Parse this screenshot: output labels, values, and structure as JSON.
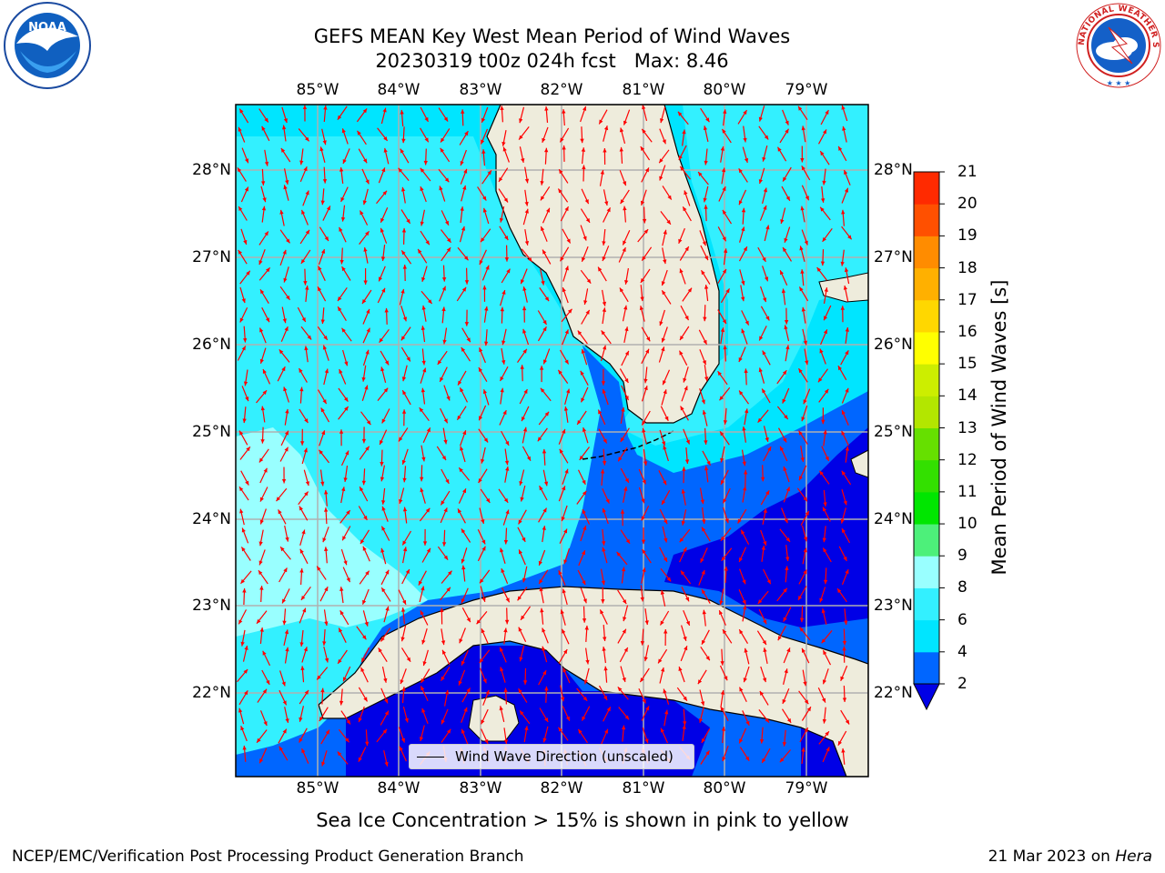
{
  "title": {
    "line1": "GEFS MEAN Key West Mean Period of Wind Waves",
    "line2": "20230319 t00z 024h fcst   Max: 8.46"
  },
  "map": {
    "lon_labels": [
      "85°W",
      "84°W",
      "83°W",
      "82°W",
      "81°W",
      "80°W",
      "79°W"
    ],
    "lat_labels": [
      "28°N",
      "27°N",
      "26°N",
      "25°N",
      "24°N",
      "23°N",
      "22°N"
    ],
    "lon_range": [
      -86.0,
      -78.3
    ],
    "lat_range": [
      21.05,
      28.75
    ],
    "fill_colors": [
      "#0000e6",
      "#0066ff",
      "#00e5ff",
      "#33f0ff",
      "#99ffff"
    ],
    "land_color": "#eeecdc",
    "arrow_color": "#ff0000"
  },
  "colorbar": {
    "ticks": [
      "2",
      "4",
      "6",
      "8",
      "9",
      "10",
      "11",
      "12",
      "13",
      "14",
      "15",
      "16",
      "17",
      "18",
      "19",
      "20",
      "21"
    ],
    "colors": [
      "#0066ff",
      "#00e5ff",
      "#33f0ff",
      "#99ffff",
      "#4df07a",
      "#00e600",
      "#33e000",
      "#66e000",
      "#b3e600",
      "#ccee00",
      "#ffff00",
      "#ffd700",
      "#ffb000",
      "#ff8c00",
      "#ff5000",
      "#ff2a00",
      "#ff0000"
    ],
    "under_color": "#0000e6",
    "label": "Mean Period of Wind Waves [s]"
  },
  "legend": {
    "label": "Wind Wave Direction (unscaled)"
  },
  "ice_note": "Sea Ice Concentration > 15% is shown in pink to yellow",
  "footer": {
    "left": "NCEP/EMC/Verification Post Processing Product Generation Branch",
    "right_date": "21 Mar 2023 on ",
    "right_host": "Hera"
  }
}
